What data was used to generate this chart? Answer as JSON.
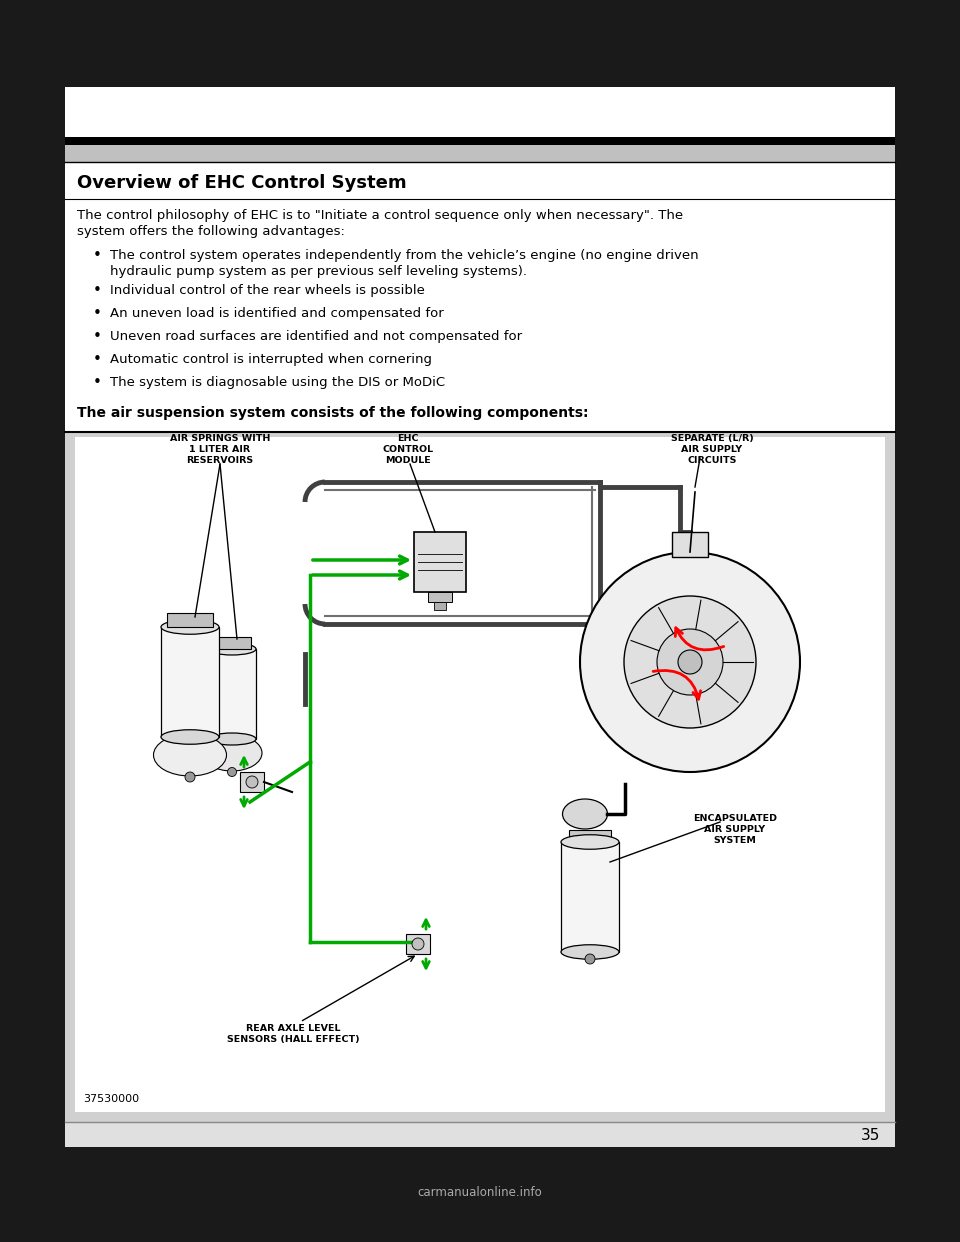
{
  "page_bg": "#1a1a1a",
  "content_bg": "#ffffff",
  "page_number": "35",
  "title": "Overview of EHC Control System",
  "intro_line1": "The control philosophy of EHC is to \"Initiate a control sequence only when necessary\". The",
  "intro_line2": "system offers the following advantages:",
  "bullet_points": [
    [
      "The control system operates independently from the vehicle’s engine (no engine driven",
      "hydraulic pump system as per previous self leveling systems)."
    ],
    [
      "Individual control of the rear wheels is possible"
    ],
    [
      "An uneven load is identified and compensated for"
    ],
    [
      "Uneven road surfaces are identified and not compensated for"
    ],
    [
      "Automatic control is interrupted when cornering"
    ],
    [
      "The system is diagnosable using the DIS or MoDiC"
    ]
  ],
  "bottom_bold": "The air suspension system consists of the following components:",
  "label_air_springs": "AIR SPRINGS WITH\n1 LITER AIR\nRESERVOIRS",
  "label_ehc": "EHC\nCONTROL\nMODULE",
  "label_separate": "SEPARATE (L/R)\nAIR SUPPLY\nCIRCUITS",
  "label_rear_axle": "REAR AXLE LEVEL\nSENSORS (HALL EFFECT)",
  "label_encapsulated": "ENCAPSULATED\nAIR SUPPLY\nSYSTEM",
  "figure_number": "37530000",
  "footer_text": "carmanualonline.info",
  "gray_bar": "#c0c0c0",
  "diagram_bg": "#d0d0d0"
}
